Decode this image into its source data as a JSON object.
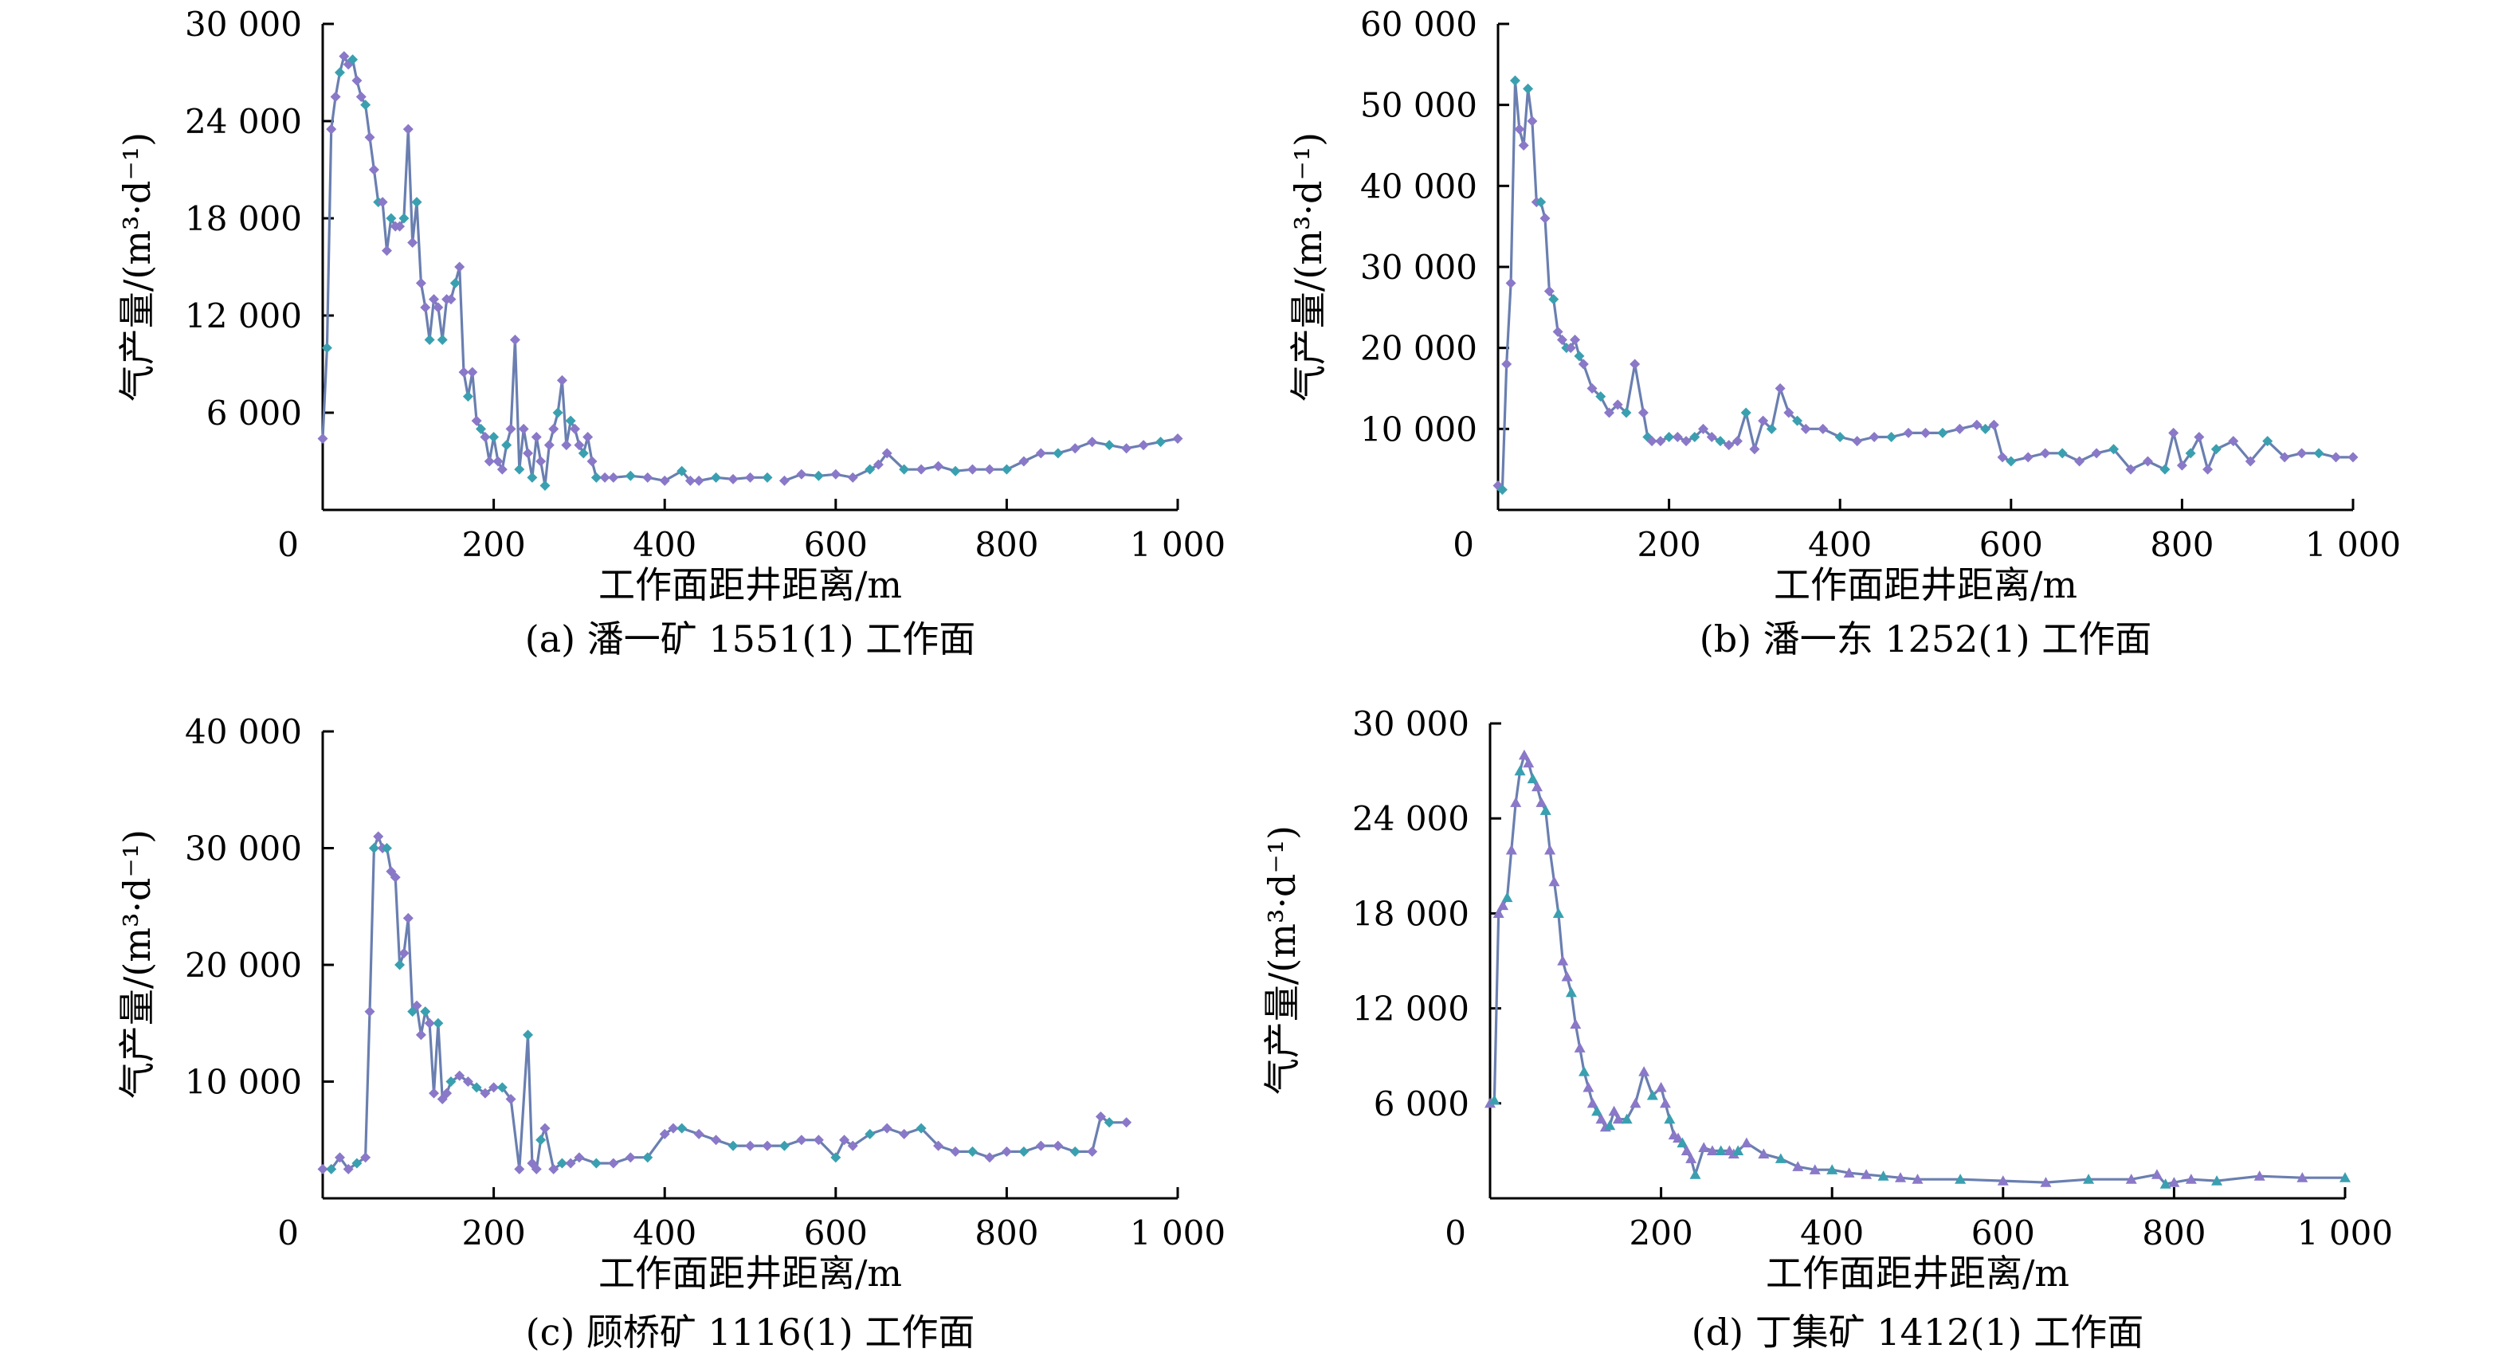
{
  "colors": {
    "line": "#6a7fb0",
    "marker": "#8a78c8",
    "marker_alt": "#3aa0b0"
  },
  "chart_data": [
    {
      "type": "line",
      "caption": "(a) 潘一矿 1551(1) 工作面",
      "xlabel": "工作面距井距离/m",
      "ylabel": "气产量/(m³·d⁻¹)",
      "xlim": [
        0,
        1000
      ],
      "ylim": [
        0,
        30000
      ],
      "xticks": [
        0,
        200,
        400,
        600,
        800,
        1000
      ],
      "xtick_labels": [
        "0",
        "200",
        "400",
        "600",
        "800",
        "1 000"
      ],
      "yticks": [
        6000,
        12000,
        18000,
        24000,
        30000
      ],
      "ytick_labels": [
        "6 000",
        "12 000",
        "18 000",
        "24 000",
        "30 000"
      ],
      "marker": "diamond",
      "x": [
        0,
        5,
        10,
        15,
        20,
        25,
        30,
        35,
        40,
        45,
        50,
        55,
        60,
        65,
        70,
        75,
        80,
        85,
        90,
        95,
        100,
        105,
        110,
        115,
        120,
        125,
        130,
        135,
        140,
        145,
        150,
        155,
        160,
        165,
        170,
        175,
        180,
        185,
        190,
        195,
        200,
        205,
        210,
        215,
        220,
        225,
        230,
        235,
        240,
        245,
        250,
        255,
        260,
        265,
        270,
        275,
        280,
        285,
        290,
        295,
        300,
        305,
        310,
        315,
        320,
        330,
        340,
        360,
        380,
        400,
        420,
        430,
        440,
        460,
        480,
        500,
        520,
        540,
        560,
        580,
        600,
        620,
        640,
        650,
        660,
        680,
        700,
        720,
        740,
        760,
        780,
        800,
        820,
        840,
        860,
        880,
        900,
        920,
        940,
        960,
        980,
        1000
      ],
      "y": [
        4400,
        10000,
        23500,
        25500,
        27000,
        28000,
        27500,
        27800,
        26500,
        25500,
        25000,
        23000,
        21000,
        19000,
        19000,
        16000,
        18000,
        17500,
        17500,
        18000,
        23500,
        16500,
        19000,
        14000,
        12500,
        10500,
        13000,
        12500,
        10500,
        13000,
        13000,
        14000,
        15000,
        8500,
        7000,
        8500,
        5500,
        5000,
        4500,
        3000,
        4500,
        3000,
        2500,
        4000,
        5000,
        10500,
        2500,
        5000,
        3500,
        2000,
        4500,
        3000,
        1500,
        4000,
        5000,
        6000,
        8000,
        4000,
        5500,
        5000,
        4000,
        3500,
        4500,
        3000,
        2000,
        2000,
        2000,
        2100,
        2000,
        1800,
        2400,
        1800,
        1800,
        2000,
        1900,
        2000,
        2000,
        1800,
        2200,
        2100,
        2200,
        2000,
        2500,
        2800,
        3500,
        2500,
        2500,
        2700,
        2400,
        2500,
        2500,
        2500,
        3000,
        3500,
        3500,
        3800,
        4200,
        4000,
        3800,
        4000,
        4200,
        4400
      ],
      "gap_after_x": 520
    },
    {
      "type": "line",
      "caption": "(b) 潘一东 1252(1) 工作面",
      "xlabel": "工作面距井距离/m",
      "ylabel": "气产量/(m³·d⁻¹)",
      "xlim": [
        0,
        1000
      ],
      "ylim": [
        0,
        60000
      ],
      "xticks": [
        0,
        200,
        400,
        600,
        800,
        1000
      ],
      "xtick_labels": [
        "0",
        "200",
        "400",
        "600",
        "800",
        "1 000"
      ],
      "yticks": [
        10000,
        20000,
        30000,
        40000,
        50000,
        60000
      ],
      "ytick_labels": [
        "10 000",
        "20 000",
        "30 000",
        "40 000",
        "50 000",
        "60 000"
      ],
      "marker": "diamond",
      "x": [
        0,
        5,
        10,
        15,
        20,
        25,
        30,
        35,
        40,
        45,
        50,
        55,
        60,
        65,
        70,
        75,
        80,
        85,
        90,
        95,
        100,
        110,
        120,
        130,
        140,
        150,
        160,
        170,
        175,
        180,
        190,
        200,
        210,
        220,
        230,
        240,
        250,
        260,
        270,
        280,
        290,
        300,
        310,
        320,
        330,
        340,
        350,
        360,
        380,
        400,
        420,
        440,
        460,
        480,
        500,
        520,
        540,
        560,
        570,
        580,
        590,
        600,
        620,
        640,
        660,
        680,
        700,
        720,
        740,
        760,
        780,
        790,
        800,
        810,
        820,
        830,
        840,
        860,
        880,
        900,
        920,
        940,
        960,
        980,
        1000
      ],
      "y": [
        3000,
        2500,
        18000,
        28000,
        53000,
        47000,
        45000,
        52000,
        48000,
        38000,
        38000,
        36000,
        27000,
        26000,
        22000,
        21000,
        20000,
        20000,
        21000,
        19000,
        18000,
        15000,
        14000,
        12000,
        13000,
        12000,
        18000,
        12000,
        9000,
        8500,
        8500,
        9000,
        9000,
        8500,
        9000,
        10000,
        9000,
        8500,
        8000,
        8500,
        12000,
        7500,
        11000,
        10000,
        15000,
        12000,
        11000,
        10000,
        10000,
        9000,
        8500,
        9000,
        9000,
        9500,
        9500,
        9500,
        10000,
        10500,
        10000,
        10500,
        6500,
        6000,
        6500,
        7000,
        7000,
        6000,
        7000,
        7500,
        5000,
        6000,
        5000,
        9500,
        5500,
        7000,
        9000,
        5000,
        7500,
        8500,
        6000,
        8500,
        6500,
        7000,
        7000,
        6500,
        6500
      ]
    },
    {
      "type": "line",
      "caption": "(c) 顾桥矿 1116(1) 工作面",
      "xlabel": "工作面距井距离/m",
      "ylabel": "气产量/(m³·d⁻¹)",
      "xlim": [
        0,
        1000
      ],
      "ylim": [
        0,
        40000
      ],
      "xticks": [
        0,
        200,
        400,
        600,
        800,
        1000
      ],
      "xtick_labels": [
        "0",
        "200",
        "400",
        "600",
        "800",
        "1 000"
      ],
      "yticks": [
        10000,
        20000,
        30000,
        40000
      ],
      "ytick_labels": [
        "10 000",
        "20 000",
        "30 000",
        "40 000"
      ],
      "marker": "diamond",
      "x": [
        0,
        10,
        20,
        30,
        40,
        50,
        55,
        60,
        65,
        70,
        75,
        80,
        85,
        90,
        95,
        100,
        105,
        110,
        115,
        120,
        125,
        130,
        135,
        140,
        145,
        150,
        160,
        170,
        180,
        190,
        200,
        210,
        220,
        230,
        240,
        245,
        250,
        255,
        260,
        270,
        280,
        290,
        300,
        320,
        340,
        360,
        380,
        400,
        410,
        420,
        440,
        460,
        480,
        500,
        520,
        540,
        560,
        580,
        600,
        610,
        620,
        640,
        660,
        680,
        700,
        720,
        740,
        760,
        780,
        800,
        820,
        840,
        860,
        880,
        900,
        910,
        920,
        940
      ],
      "y": [
        2500,
        2500,
        3500,
        2500,
        3000,
        3500,
        16000,
        30000,
        31000,
        30000,
        30000,
        28000,
        27500,
        20000,
        21000,
        24000,
        16000,
        16500,
        14000,
        16000,
        15000,
        9000,
        15000,
        8500,
        9000,
        10000,
        10500,
        10000,
        9500,
        9000,
        9500,
        9500,
        8500,
        2500,
        14000,
        3000,
        2500,
        5000,
        6000,
        2500,
        3000,
        3000,
        3500,
        3000,
        3000,
        3500,
        3500,
        5500,
        6000,
        6000,
        5500,
        5000,
        4500,
        4500,
        4500,
        4500,
        5000,
        5000,
        3500,
        5000,
        4500,
        5500,
        6000,
        5500,
        6000,
        4500,
        4000,
        4000,
        3500,
        4000,
        4000,
        4500,
        4500,
        4000,
        4000,
        7000,
        6500,
        6500
      ]
    },
    {
      "type": "line",
      "caption": "(d) 丁集矿 1412(1) 工作面",
      "xlabel": "工作面距井距离/m",
      "ylabel": "气产量/(m³·d⁻¹)",
      "xlim": [
        0,
        1000
      ],
      "ylim": [
        0,
        30000
      ],
      "xticks": [
        0,
        200,
        400,
        600,
        800,
        1000
      ],
      "xtick_labels": [
        "0",
        "200",
        "400",
        "600",
        "800",
        "1 000"
      ],
      "yticks": [
        6000,
        12000,
        18000,
        24000,
        30000
      ],
      "ytick_labels": [
        "6 000",
        "12 000",
        "18 000",
        "24 000",
        "30 000"
      ],
      "marker": "triangle",
      "x": [
        0,
        5,
        10,
        15,
        20,
        25,
        30,
        35,
        40,
        45,
        50,
        55,
        60,
        65,
        70,
        75,
        80,
        85,
        90,
        95,
        100,
        105,
        110,
        115,
        120,
        125,
        130,
        135,
        140,
        145,
        150,
        160,
        170,
        180,
        190,
        200,
        205,
        210,
        215,
        220,
        225,
        230,
        235,
        240,
        250,
        260,
        270,
        280,
        285,
        290,
        300,
        320,
        340,
        360,
        380,
        400,
        420,
        440,
        460,
        480,
        500,
        550,
        600,
        650,
        700,
        750,
        780,
        790,
        800,
        820,
        850,
        900,
        950,
        1000
      ],
      "y": [
        6000,
        6200,
        18000,
        18500,
        19000,
        22000,
        25000,
        27000,
        28000,
        27500,
        26500,
        26000,
        25000,
        24500,
        22000,
        20000,
        18000,
        15000,
        14000,
        13000,
        11000,
        9500,
        8000,
        7000,
        6000,
        5500,
        5000,
        4500,
        4600,
        5500,
        5000,
        5000,
        6000,
        8000,
        6500,
        7000,
        6000,
        5000,
        4000,
        3800,
        3500,
        3000,
        2500,
        1500,
        3200,
        3000,
        3000,
        3000,
        2800,
        3000,
        3500,
        2800,
        2500,
        2000,
        1800,
        1800,
        1600,
        1500,
        1400,
        1300,
        1200,
        1200,
        1100,
        1000,
        1200,
        1200,
        1500,
        900,
        1000,
        1200,
        1100,
        1400,
        1300,
        1300
      ]
    }
  ]
}
